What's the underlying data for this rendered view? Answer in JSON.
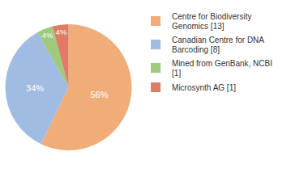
{
  "chart_data": {
    "type": "pie",
    "categories": [
      "Centre for Biodiversity Genomics [13]",
      "Canadian Centre for DNA Barcoding [8]",
      "Mined from GenBank, NCBI [1]",
      "Microsynth AG [1]"
    ],
    "values": [
      56,
      34,
      4,
      4
    ],
    "value_labels": [
      "56%",
      "34%",
      "4%",
      "4%"
    ],
    "colors": [
      "#f0ad78",
      "#a0bce2",
      "#9dca7b",
      "#e07b64"
    ],
    "data_labels": true,
    "legend": "right"
  }
}
